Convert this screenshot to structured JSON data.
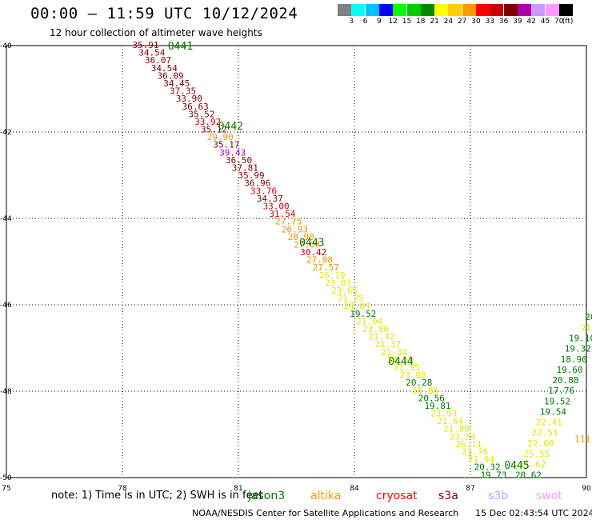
{
  "header": {
    "title": "00:00 — 11:59 UTC 10/12/2024",
    "subtitle": "12 hour collection of altimeter wave heights"
  },
  "legend": {
    "unit": "(ft)",
    "bins": [
      {
        "label": "3",
        "color": "#808080"
      },
      {
        "label": "6",
        "color": "#00ffff"
      },
      {
        "label": "9",
        "color": "#00c0ff"
      },
      {
        "label": "12",
        "color": "#0000ff"
      },
      {
        "label": "15",
        "color": "#00ff00"
      },
      {
        "label": "18",
        "color": "#00cc00"
      },
      {
        "label": "21",
        "color": "#008800"
      },
      {
        "label": "24",
        "color": "#ffff00"
      },
      {
        "label": "27",
        "color": "#ffcc00"
      },
      {
        "label": "30",
        "color": "#ff9900"
      },
      {
        "label": "33",
        "color": "#ff0000"
      },
      {
        "label": "36",
        "color": "#cc0000"
      },
      {
        "label": "39",
        "color": "#800000"
      },
      {
        "label": "42",
        "color": "#aa00aa"
      },
      {
        "label": "45",
        "color": "#cc99ff"
      },
      {
        "label": "70",
        "color": "#ff99ff"
      },
      {
        "label": "",
        "color": "#000000"
      }
    ]
  },
  "map": {
    "x_ticks": [
      "75",
      "78",
      "81",
      "84",
      "87",
      "90"
    ],
    "y_ticks": [
      "-40",
      "-42",
      "-44",
      "-46",
      "-48",
      "-50"
    ],
    "colors": {
      "dark_red": "#800000",
      "red": "#cc0000",
      "orange": "#e69500",
      "yellow": "#e6e600",
      "green": "#007700",
      "purple": "#aa00aa"
    },
    "time_labels": [
      {
        "text": "0441",
        "lon": 79.5,
        "lat": -40.0
      },
      {
        "text": "0442",
        "lon": 80.8,
        "lat": -41.85
      },
      {
        "text": "0443",
        "lon": 82.9,
        "lat": -44.55
      },
      {
        "text": "0444",
        "lon": 85.2,
        "lat": -47.3
      },
      {
        "text": "0445",
        "lon": 88.2,
        "lat": -49.7
      }
    ],
    "track1": [
      {
        "text": "35.91",
        "c": "dark_red"
      },
      {
        "text": "34.54",
        "c": "dark_red"
      },
      {
        "text": "36.07",
        "c": "dark_red"
      },
      {
        "text": "34.54",
        "c": "dark_red"
      },
      {
        "text": "36.09",
        "c": "dark_red"
      },
      {
        "text": "34.45",
        "c": "dark_red"
      },
      {
        "text": "37.35",
        "c": "dark_red"
      },
      {
        "text": "33.90",
        "c": "dark_red"
      },
      {
        "text": "36.63",
        "c": "dark_red"
      },
      {
        "text": "35.52",
        "c": "dark_red"
      },
      {
        "text": "33.92",
        "c": "red"
      },
      {
        "text": "35.12",
        "c": "dark_red"
      },
      {
        "text": "29.90",
        "c": "orange"
      },
      {
        "text": "35.17",
        "c": "dark_red"
      },
      {
        "text": "39.43",
        "c": "purple"
      },
      {
        "text": "36.50",
        "c": "dark_red"
      },
      {
        "text": "37.81",
        "c": "dark_red"
      },
      {
        "text": "35.99",
        "c": "dark_red"
      },
      {
        "text": "36.96",
        "c": "dark_red"
      },
      {
        "text": "33.76",
        "c": "red"
      },
      {
        "text": "34.37",
        "c": "dark_red"
      },
      {
        "text": "33.00",
        "c": "red"
      },
      {
        "text": "31.54",
        "c": "red"
      },
      {
        "text": "27.75",
        "c": "orange"
      },
      {
        "text": "26.93",
        "c": "orange"
      },
      {
        "text": "28.90",
        "c": "orange"
      },
      {
        "text": "27.07",
        "c": "orange"
      },
      {
        "text": "30.42",
        "c": "red"
      },
      {
        "text": "27.98",
        "c": "orange"
      },
      {
        "text": "27.57",
        "c": "orange"
      },
      {
        "text": "26.19",
        "c": "yellow"
      },
      {
        "text": "23.83",
        "c": "yellow"
      },
      {
        "text": "23.65",
        "c": "yellow"
      },
      {
        "text": "21.75",
        "c": "yellow"
      },
      {
        "text": "24.04",
        "c": "yellow"
      },
      {
        "text": "19.52",
        "c": "green"
      },
      {
        "text": "21.04",
        "c": "yellow"
      },
      {
        "text": "23.86",
        "c": "yellow"
      },
      {
        "text": "21.42",
        "c": "yellow"
      },
      {
        "text": "21.37",
        "c": "yellow"
      },
      {
        "text": "21.34",
        "c": "yellow"
      },
      {
        "text": "22.59",
        "c": "yellow"
      },
      {
        "text": "21.35",
        "c": "yellow"
      },
      {
        "text": "23.08",
        "c": "yellow"
      },
      {
        "text": "20.28",
        "c": "green"
      },
      {
        "text": "20.86",
        "c": "yellow"
      },
      {
        "text": "20.56",
        "c": "green"
      },
      {
        "text": "19.81",
        "c": "green"
      },
      {
        "text": "23.93",
        "c": "yellow"
      },
      {
        "text": "21.64",
        "c": "yellow"
      },
      {
        "text": "21.80",
        "c": "yellow"
      },
      {
        "text": "23.54",
        "c": "yellow"
      },
      {
        "text": "26.11",
        "c": "yellow"
      },
      {
        "text": "23.76",
        "c": "yellow"
      },
      {
        "text": "21.94",
        "c": "yellow"
      },
      {
        "text": "20.32",
        "c": "green"
      },
      {
        "text": "19.73",
        "c": "green"
      }
    ],
    "track1_start": {
      "lon": 78.6,
      "lat": -40.0
    },
    "track1_end": {
      "lon": 87.6,
      "lat": -49.95
    },
    "track2": [
      {
        "text": "20.62",
        "c": "green"
      },
      {
        "text": "21.62",
        "c": "yellow"
      },
      {
        "text": "25.55",
        "c": "yellow"
      },
      {
        "text": "22.68",
        "c": "yellow"
      },
      {
        "text": "22.51",
        "c": "yellow"
      },
      {
        "text": "22.41",
        "c": "yellow"
      },
      {
        "text": "19.54",
        "c": "green"
      },
      {
        "text": "19.52",
        "c": "green"
      },
      {
        "text": "17.76",
        "c": "green"
      },
      {
        "text": "20.88",
        "c": "green"
      },
      {
        "text": "19.60",
        "c": "green"
      },
      {
        "text": "18.90",
        "c": "green"
      },
      {
        "text": "19.32",
        "c": "green"
      },
      {
        "text": "19.10",
        "c": "green"
      },
      {
        "text": "21",
        "c": "yellow"
      },
      {
        "text": "20",
        "c": "green"
      }
    ],
    "track2_start": {
      "lon": 88.5,
      "lat": -49.95
    },
    "track2_end": {
      "lon": 90.1,
      "lat": -46.3
    },
    "edge_label": {
      "text": "111",
      "c": "orange",
      "lon": 89.9,
      "lat": -49.1
    }
  },
  "note": {
    "text": "note:  1) Time is in UTC;  2) SWH is in feet",
    "satellites": [
      {
        "name": "jason3",
        "color": "#007700"
      },
      {
        "name": "altika",
        "color": "#ff9900"
      },
      {
        "name": "cryosat",
        "color": "#ff0000"
      },
      {
        "name": "s3a",
        "color": "#800000"
      },
      {
        "name": "s3b",
        "color": "#cc99ff"
      },
      {
        "name": "swot",
        "color": "#ff99ff"
      }
    ]
  },
  "footer": {
    "credit": "NOAA/NESDIS Center for Satellite Applications and Research",
    "timestamp": "15 Dec 02:43:54 UTC 2024"
  }
}
